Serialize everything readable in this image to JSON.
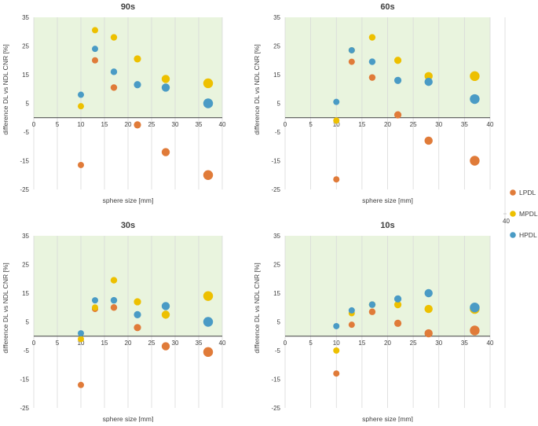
{
  "figure": {
    "legend_position": "right",
    "stray_tick": "40"
  },
  "legend": [
    {
      "name": "LPDL",
      "color": "#E07B39"
    },
    {
      "name": "MPDL",
      "color": "#EDC000"
    },
    {
      "name": "HPDL",
      "color": "#4A9BC5"
    }
  ],
  "chart_data": [
    {
      "type": "scatter",
      "title": "90s",
      "xlabel": "sphere size [mm]",
      "ylabel": "difference DL vs NDL CNR [%]",
      "xlim": [
        0,
        40
      ],
      "ylim": [
        -25,
        35
      ],
      "xticks": [
        0,
        5,
        10,
        15,
        20,
        25,
        30,
        35,
        40
      ],
      "yticks": [
        -25,
        -15,
        -5,
        5,
        15,
        25,
        35
      ],
      "shaded_region": {
        "y_from": 0,
        "y_to": 35,
        "color": "#E9F4DE"
      },
      "x": [
        10,
        13,
        17,
        22,
        28,
        37
      ],
      "series": [
        {
          "name": "LPDL",
          "values": [
            -16.5,
            20,
            10.5,
            -2.5,
            -12,
            -20
          ]
        },
        {
          "name": "MPDL",
          "values": [
            4,
            30.5,
            28,
            20.5,
            13.5,
            12
          ]
        },
        {
          "name": "HPDL",
          "values": [
            8,
            24,
            16,
            11.5,
            10.5,
            5
          ]
        }
      ]
    },
    {
      "type": "scatter",
      "title": "60s",
      "xlabel": "sphere size [mm]",
      "ylabel": "difference DL vs NDL CNR [%]",
      "xlim": [
        0,
        40
      ],
      "ylim": [
        -25,
        35
      ],
      "xticks": [
        0,
        5,
        10,
        15,
        20,
        25,
        30,
        35,
        40
      ],
      "yticks": [
        -25,
        -15,
        -5,
        5,
        15,
        25,
        35
      ],
      "shaded_region": {
        "y_from": 0,
        "y_to": 35,
        "color": "#E9F4DE"
      },
      "x": [
        10,
        13,
        17,
        22,
        28,
        37
      ],
      "series": [
        {
          "name": "LPDL",
          "values": [
            -21.5,
            19.5,
            14,
            1,
            -8,
            -15
          ]
        },
        {
          "name": "MPDL",
          "values": [
            -1,
            23.5,
            28,
            20,
            14.5,
            14.5
          ]
        },
        {
          "name": "HPDL",
          "values": [
            5.5,
            23.5,
            19.5,
            13,
            12.5,
            6.5
          ]
        }
      ]
    },
    {
      "type": "scatter",
      "title": "30s",
      "xlabel": "sphere size [mm]",
      "ylabel": "difference DL vs NDL CNR [%]",
      "xlim": [
        0,
        40
      ],
      "ylim": [
        -25,
        35
      ],
      "xticks": [
        0,
        5,
        10,
        15,
        20,
        25,
        30,
        35,
        40
      ],
      "yticks": [
        -25,
        -15,
        -5,
        5,
        15,
        25,
        35
      ],
      "shaded_region": {
        "y_from": 0,
        "y_to": 35,
        "color": "#E9F4DE"
      },
      "x": [
        10,
        13,
        17,
        22,
        28,
        37
      ],
      "series": [
        {
          "name": "LPDL",
          "values": [
            -17,
            9.5,
            10,
            3,
            -3.5,
            -5.5
          ]
        },
        {
          "name": "MPDL",
          "values": [
            -1,
            10,
            19.5,
            12,
            7.5,
            14
          ]
        },
        {
          "name": "HPDL",
          "values": [
            1,
            12.5,
            12.5,
            7.5,
            10.5,
            5
          ]
        }
      ]
    },
    {
      "type": "scatter",
      "title": "10s",
      "xlabel": "sphere size [mm]",
      "ylabel": "difference DL vs NDL CNR [%]",
      "xlim": [
        0,
        40
      ],
      "ylim": [
        -25,
        35
      ],
      "xticks": [
        0,
        5,
        10,
        15,
        20,
        25,
        30,
        35,
        40
      ],
      "yticks": [
        -25,
        -15,
        -5,
        5,
        15,
        25,
        35
      ],
      "shaded_region": {
        "y_from": 0,
        "y_to": 35,
        "color": "#E9F4DE"
      },
      "x": [
        10,
        13,
        17,
        22,
        28,
        37
      ],
      "series": [
        {
          "name": "LPDL",
          "values": [
            -13,
            4,
            8.5,
            4.5,
            1,
            2
          ]
        },
        {
          "name": "MPDL",
          "values": [
            -5,
            8,
            11,
            11,
            9.5,
            9.5
          ]
        },
        {
          "name": "HPDL",
          "values": [
            3.5,
            9,
            11,
            13,
            15,
            10
          ]
        }
      ]
    }
  ]
}
